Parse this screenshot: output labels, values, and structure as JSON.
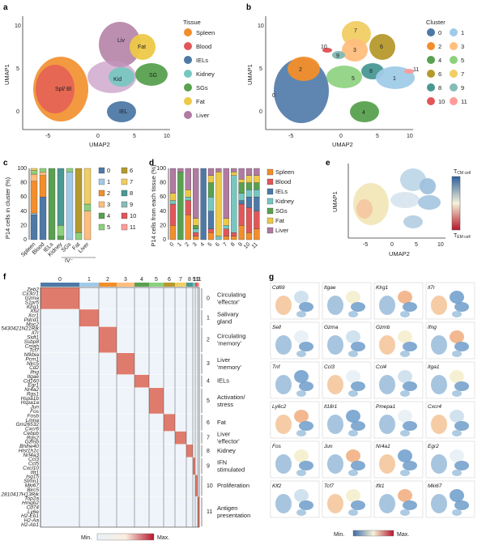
{
  "panels": {
    "a": {
      "letter": "a",
      "xlabel": "UMAP2",
      "ylabel": "UMAP1",
      "legend_title": "Tissue",
      "xticks": [
        "-5",
        "0",
        "5",
        "10"
      ],
      "yticks": [
        "10",
        "5",
        "0"
      ],
      "map_labels": [
        "Liv",
        "Fat",
        "Spl/ Bl",
        "Kid",
        "SG",
        "IEL"
      ]
    },
    "b": {
      "letter": "b",
      "xlabel": "UMAP2",
      "ylabel": "UMAP1",
      "legend_title": "Cluster",
      "xticks": [
        "-5",
        "0",
        "5",
        "10"
      ],
      "yticks": [
        "10",
        "5",
        "0"
      ]
    },
    "c": {
      "letter": "c",
      "ylabel": "P14 cells in cluster (%)",
      "yticks": [
        "0",
        "20",
        "40",
        "60",
        "80",
        "100"
      ],
      "xcats": [
        "Spleen",
        "Blood",
        "IELs",
        "Kidney",
        "SGs",
        "Fat",
        "Liver"
      ],
      "iv_label": "IV⁻"
    },
    "d": {
      "letter": "d",
      "ylabel": "P14 cells from each tissue (%)",
      "yticks": [
        "0",
        "20",
        "40",
        "60",
        "80",
        "100"
      ],
      "xcats": [
        "0",
        "1",
        "2",
        "3",
        "4",
        "5",
        "6",
        "7",
        "8",
        "9",
        "10",
        "11"
      ]
    },
    "e": {
      "letter": "e",
      "xlabel": "UMAP2",
      "ylabel": "UMAP1",
      "xticks": [
        "-5",
        "0",
        "5",
        "10"
      ],
      "top_label": "T",
      "top_sub": "CM cell",
      "bottom_label": "T",
      "bottom_sub": "EM cell"
    },
    "f": {
      "letter": "f",
      "col_clusters": [
        "0",
        "1",
        "2",
        "3",
        "4",
        "5",
        "6",
        "7",
        "8",
        "9",
        "10",
        "11"
      ],
      "row_groups": [
        {
          "num": "0",
          "label": "Circulating 'effector'"
        },
        {
          "num": "1",
          "label": "Salivary gland"
        },
        {
          "num": "2",
          "label": "Circulating 'memory'"
        },
        {
          "num": "3",
          "label": "Liver 'memory'"
        },
        {
          "num": "4",
          "label": "IELs"
        },
        {
          "num": "5",
          "label": "Activation/ stress"
        },
        {
          "num": "6",
          "label": "Fat"
        },
        {
          "num": "7",
          "label": "Liver 'effector'"
        },
        {
          "num": "8",
          "label": "Kidney"
        },
        {
          "num": "9",
          "label": "IFN stimulated"
        },
        {
          "num": "10",
          "label": "Proliferation"
        },
        {
          "num": "11",
          "label": "Antigen presentation"
        }
      ],
      "genes": [
        "Zeb2",
        "Cx3cr1",
        "Gzma",
        "S1pr5",
        "Klrg1",
        "Xist",
        "Xcr1",
        "Pdcd1",
        "Muc2",
        "5430421N21Rik",
        "Il7r",
        "Sidt1",
        "Ssbp8",
        "Cmah",
        "Tcf7",
        "Nfkbia",
        "Pcm1",
        "Nlrc5",
        "Cd2",
        "Ifng",
        "Itgae",
        "Cd160",
        "Egr1",
        "Nr4a2",
        "Rgs1",
        "Hspa1b",
        "Hspa1a",
        "Jun",
        "Fos",
        "Fosb",
        "Lmna",
        "Gm26532",
        "Cxcr6",
        "Cebpb",
        "Rgs2",
        "Gzmb",
        "Bhlhe40",
        "Hist1h1c",
        "Nrf4a3",
        "Ccl3",
        "Ccl5",
        "Cxcl10",
        "Ifit1",
        "Isg15",
        "Stmn1",
        "Mki67",
        "Birc5",
        "2810417H13Rik",
        "Top2a",
        "Hmgb2",
        "Cd74",
        "Ly6e",
        "H2-Eb1",
        "H2-Aa",
        "H2-Ab1"
      ],
      "colorbar_min": "Min.",
      "colorbar_max": "Max."
    },
    "g": {
      "letter": "g",
      "genes": [
        "Cd69",
        "Itgae",
        "Klrg1",
        "Il7r",
        "Sell",
        "Gzma",
        "Gzmb",
        "Ifng",
        "Tnf",
        "Ccl3",
        "Ccl4",
        "Itga1",
        "Ly6c2",
        "Il18r1",
        "Pmepa1",
        "Cxcr4",
        "Fos",
        "Jun",
        "Nr4a1",
        "Egr2",
        "Klf2",
        "Tcf7",
        "Ifit1",
        "Mki67"
      ],
      "colorbar_min": "Min.",
      "colorbar_max": "Max."
    }
  },
  "tissue_legend": [
    {
      "name": "Spleen",
      "color": "#f28e2b"
    },
    {
      "name": "Blood",
      "color": "#e15759"
    },
    {
      "name": "IELs",
      "color": "#4e79a7"
    },
    {
      "name": "Kidney",
      "color": "#76c7c0"
    },
    {
      "name": "SGs",
      "color": "#59a14f"
    },
    {
      "name": "Fat",
      "color": "#edc948"
    },
    {
      "name": "Liver",
      "color": "#b07aa1"
    }
  ],
  "cluster_legend": [
    {
      "name": "0",
      "color": "#4e79a7"
    },
    {
      "name": "1",
      "color": "#a0cbe8"
    },
    {
      "name": "2",
      "color": "#f28e2b"
    },
    {
      "name": "3",
      "color": "#ffbe7d"
    },
    {
      "name": "4",
      "color": "#59a14f"
    },
    {
      "name": "5",
      "color": "#8cd17d"
    },
    {
      "name": "6",
      "color": "#b6992d"
    },
    {
      "name": "7",
      "color": "#f1ce63"
    },
    {
      "name": "8",
      "color": "#499894"
    },
    {
      "name": "9",
      "color": "#86bcb6"
    },
    {
      "name": "10",
      "color": "#e15759"
    },
    {
      "name": "11",
      "color": "#ff9d9a"
    }
  ]
}
